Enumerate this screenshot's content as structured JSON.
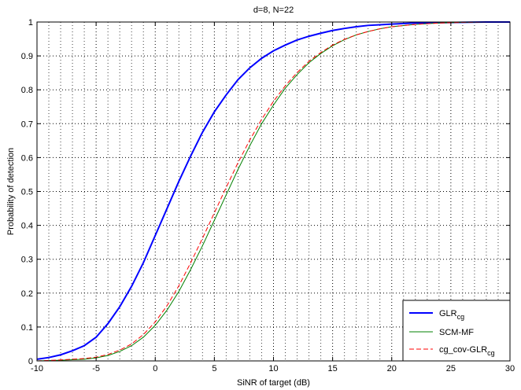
{
  "chart_data": {
    "type": "line",
    "title": "d=8, N=22",
    "xlabel": "SiNR of target (dB)",
    "ylabel": "Probability of detection",
    "xlim": [
      -10,
      30
    ],
    "ylim": [
      0,
      1
    ],
    "xticks": [
      -10,
      -5,
      0,
      5,
      10,
      15,
      20,
      25,
      30
    ],
    "yticks": [
      0,
      0.1,
      0.2,
      0.3,
      0.4,
      0.5,
      0.6,
      0.7,
      0.8,
      0.9,
      1
    ],
    "grid": true,
    "legend_position": "bottom-right",
    "series": [
      {
        "name": "GLR",
        "name_subscript": "cg",
        "color": "#0000ff",
        "style": "solid",
        "x": [
          -10,
          -9,
          -8,
          -7,
          -6,
          -5,
          -4,
          -3,
          -2,
          -1,
          0,
          1,
          2,
          3,
          4,
          5,
          6,
          7,
          8,
          9,
          10,
          11,
          12,
          13,
          14,
          15,
          16,
          17,
          18,
          19,
          20,
          22,
          24,
          26,
          28,
          30
        ],
        "y": [
          0.005,
          0.01,
          0.018,
          0.03,
          0.045,
          0.07,
          0.11,
          0.16,
          0.22,
          0.29,
          0.37,
          0.45,
          0.53,
          0.605,
          0.675,
          0.735,
          0.785,
          0.83,
          0.865,
          0.893,
          0.915,
          0.932,
          0.947,
          0.958,
          0.967,
          0.975,
          0.981,
          0.986,
          0.99,
          0.992,
          0.994,
          0.997,
          0.998,
          0.999,
          1.0,
          1.0
        ]
      },
      {
        "name": "SCM-MF",
        "color": "#008000",
        "style": "solid",
        "x": [
          -10,
          -8,
          -6,
          -5,
          -4,
          -3,
          -2,
          -1,
          0,
          1,
          2,
          3,
          4,
          5,
          6,
          7,
          8,
          9,
          10,
          11,
          12,
          13,
          14,
          15,
          16,
          17,
          18,
          19,
          20,
          22,
          24,
          26,
          28,
          30
        ],
        "y": [
          0.0,
          0.002,
          0.005,
          0.009,
          0.016,
          0.028,
          0.045,
          0.07,
          0.105,
          0.15,
          0.205,
          0.27,
          0.34,
          0.415,
          0.49,
          0.565,
          0.635,
          0.7,
          0.755,
          0.805,
          0.845,
          0.88,
          0.907,
          0.93,
          0.948,
          0.962,
          0.972,
          0.98,
          0.986,
          0.993,
          0.997,
          0.999,
          1.0,
          1.0
        ]
      },
      {
        "name": "cg_cov-GLR",
        "name_subscript": "cg",
        "color": "#ff0000",
        "style": "dashed",
        "x": [
          -10,
          -8,
          -6,
          -5,
          -4,
          -3,
          -2,
          -1,
          0,
          1,
          2,
          3,
          4,
          5,
          6,
          7,
          8,
          9,
          10,
          11,
          12,
          13,
          14,
          15,
          16,
          17,
          18,
          19,
          20,
          22,
          24,
          26,
          28,
          30
        ],
        "y": [
          0.0,
          0.003,
          0.007,
          0.011,
          0.019,
          0.032,
          0.05,
          0.078,
          0.115,
          0.163,
          0.222,
          0.29,
          0.362,
          0.437,
          0.512,
          0.585,
          0.652,
          0.713,
          0.766,
          0.812,
          0.851,
          0.884,
          0.91,
          0.932,
          0.949,
          0.962,
          0.972,
          0.98,
          0.986,
          0.993,
          0.997,
          0.999,
          1.0,
          1.0
        ]
      }
    ]
  }
}
